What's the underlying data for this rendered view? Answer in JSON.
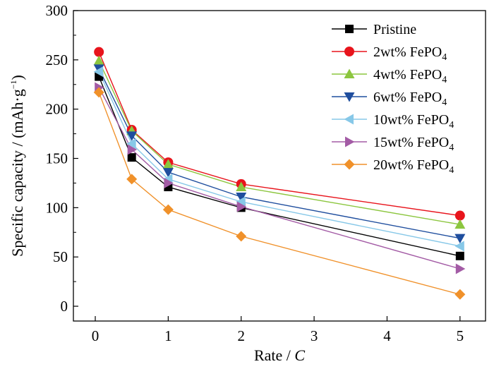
{
  "chart_data": {
    "type": "line",
    "xlabel": "Rate / C",
    "xlabel_text": "Rate / ",
    "xlabel_italic": "C",
    "ylabel": "Specific capacity / (mAh·g⁻¹)",
    "ylabel_main": "Specific capacity / (mAh·g",
    "ylabel_sup": "−1",
    "ylabel_close": ")",
    "xlim": [
      -0.3,
      5.35
    ],
    "ylim": [
      -15,
      300
    ],
    "xticks": [
      0,
      1,
      2,
      3,
      4,
      5
    ],
    "yticks": [
      0,
      50,
      100,
      150,
      200,
      250,
      300
    ],
    "grid": false,
    "legend_position": "top-right",
    "x": [
      0.05,
      0.5,
      1,
      2,
      5
    ],
    "series": [
      {
        "name": "Pristine",
        "label_main": "Pristine",
        "label_sub": "",
        "color": "#000000",
        "marker": "square",
        "values": [
          233,
          151,
          121,
          100,
          51
        ]
      },
      {
        "name": "2wt% FePO4",
        "label_main": "2wt% FePO",
        "label_sub": "4",
        "color": "#e8141c",
        "marker": "circle",
        "values": [
          258,
          179,
          146,
          124,
          92
        ]
      },
      {
        "name": "4wt% FePO4",
        "label_main": "4wt% FePO",
        "label_sub": "4",
        "color": "#8cc63f",
        "marker": "triangle-up",
        "values": [
          249,
          178,
          144,
          121,
          83
        ]
      },
      {
        "name": "6wt% FePO4",
        "label_main": "6wt% FePO",
        "label_sub": "4",
        "color": "#1f4e9e",
        "marker": "triangle-down",
        "values": [
          241,
          173,
          136,
          111,
          69
        ]
      },
      {
        "name": "10wt% FePO4",
        "label_main": "10wt% FePO",
        "label_sub": "4",
        "color": "#87c8e8",
        "marker": "triangle-left",
        "values": [
          238,
          165,
          129,
          106,
          61
        ]
      },
      {
        "name": "15wt% FePO4",
        "label_main": "15wt% FePO",
        "label_sub": "4",
        "color": "#a35ba5",
        "marker": "triangle-right",
        "values": [
          222,
          159,
          125,
          101,
          38
        ]
      },
      {
        "name": "20wt% FePO4",
        "label_main": "20wt% FePO",
        "label_sub": "4",
        "color": "#f0912a",
        "marker": "diamond",
        "values": [
          217,
          129,
          98,
          71,
          12
        ]
      }
    ]
  }
}
